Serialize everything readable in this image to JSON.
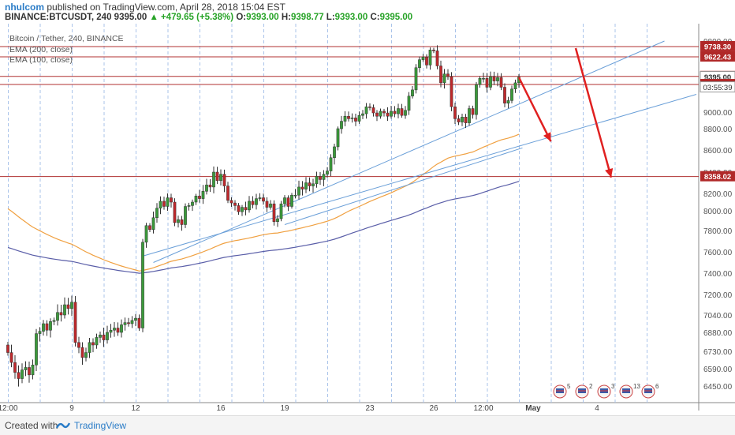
{
  "header": {
    "username": "nhulcom",
    "published_text": "published on TradingView.com, April 28, 2018 15:04 EST",
    "symbol": "BINANCE:BTCUSDT, 240",
    "last_price": "9395.00",
    "change": "▲ +479.65 (+5.38%)",
    "o_label": "O:",
    "o_value": "9393.00",
    "h_label": "H:",
    "h_value": "9398.77",
    "l_label": "L:",
    "l_value": "9393.00",
    "c_label": "C:",
    "c_value": "9395.00"
  },
  "legend": {
    "title": "Bitcoin / Tether, 240, BINANCE",
    "ema200": "EMA (200, close)",
    "ema100": "EMA (100, close)"
  },
  "footer": {
    "created_with": "Created with",
    "brand": "TradingView"
  },
  "colors": {
    "up": "#3a9a3a",
    "down": "#c0282c",
    "hline": "#b03030",
    "ema200": "#5a5ea8",
    "ema100": "#f0a040",
    "trend": "#6a9fd8",
    "arrow": "#e02020"
  },
  "chart_data": {
    "type": "candlestick",
    "title": "Bitcoin / Tether, 240, BINANCE",
    "ylim": [
      6380,
      9880
    ],
    "y_ticks": [
      "9800.00",
      "9000.00",
      "8800.00",
      "8600.00",
      "8400.00",
      "8200.00",
      "8000.00",
      "7800.00",
      "7600.00",
      "7400.00",
      "7200.00",
      "7040.00",
      "6880.00",
      "6730.00",
      "6590.00",
      "6450.00"
    ],
    "y_tick_values": [
      9800,
      9000,
      8800,
      8600,
      8400,
      8200,
      8000,
      7800,
      7600,
      7400,
      7200,
      7040,
      6880,
      6730,
      6590,
      6450
    ],
    "x_tick_labels": [
      "12:00",
      "9",
      "12",
      "16",
      "19",
      "23",
      "26",
      "12:00",
      "May",
      "4"
    ],
    "x_tick_bar_index": [
      0,
      18,
      36,
      60,
      78,
      102,
      120,
      134,
      148,
      166
    ],
    "price_labels": [
      {
        "value": 9738.3,
        "label": "9738.30",
        "kind": "line"
      },
      {
        "value": 9622.43,
        "label": "9622.43",
        "kind": "line"
      },
      {
        "value": 9401.84,
        "label": "9401.84",
        "kind": "line"
      },
      {
        "value": 9395.0,
        "label": "9395.00",
        "kind": "last"
      },
      {
        "value": 9310.84,
        "label": "9310.84",
        "kind": "line"
      },
      {
        "value": 8358.02,
        "label": "8358.02",
        "kind": "line"
      }
    ],
    "countdown": "03:55:39",
    "closes": [
      6720,
      6640,
      6560,
      6510,
      6580,
      6600,
      6540,
      6620,
      6870,
      6890,
      6960,
      6900,
      6980,
      6990,
      7060,
      7040,
      7120,
      7090,
      7140,
      6800,
      6760,
      6680,
      6720,
      6800,
      6780,
      6840,
      6860,
      6820,
      6880,
      6900,
      6920,
      6880,
      6950,
      6970,
      6960,
      6990,
      7010,
      6920,
      7690,
      7850,
      7810,
      7930,
      8030,
      8110,
      8050,
      8150,
      8100,
      7880,
      7910,
      7860,
      8050,
      8060,
      8100,
      8170,
      8140,
      8220,
      8280,
      8260,
      8400,
      8320,
      8380,
      8270,
      8120,
      8090,
      8060,
      7990,
      8040,
      8010,
      8110,
      8070,
      8140,
      8150,
      8110,
      8040,
      8080,
      7890,
      7920,
      8080,
      8150,
      8050,
      8180,
      8180,
      8260,
      8240,
      8300,
      8270,
      8290,
      8360,
      8330,
      8380,
      8410,
      8530,
      8630,
      8800,
      8890,
      8950,
      8920,
      8930,
      8890,
      8960,
      8980,
      9060,
      9050,
      8990,
      8950,
      9010,
      8990,
      8950,
      9010,
      8980,
      9040,
      8960,
      9020,
      9180,
      9250,
      9500,
      9590,
      9620,
      9530,
      9700,
      9690,
      9520,
      9330,
      9430,
      9400,
      9060,
      8920,
      8880,
      8940,
      8870,
      9040,
      8970,
      9310,
      9380,
      9380,
      9280,
      9400,
      9350,
      9390,
      9280,
      9100,
      9130,
      9260,
      9330,
      9395
    ]
  }
}
